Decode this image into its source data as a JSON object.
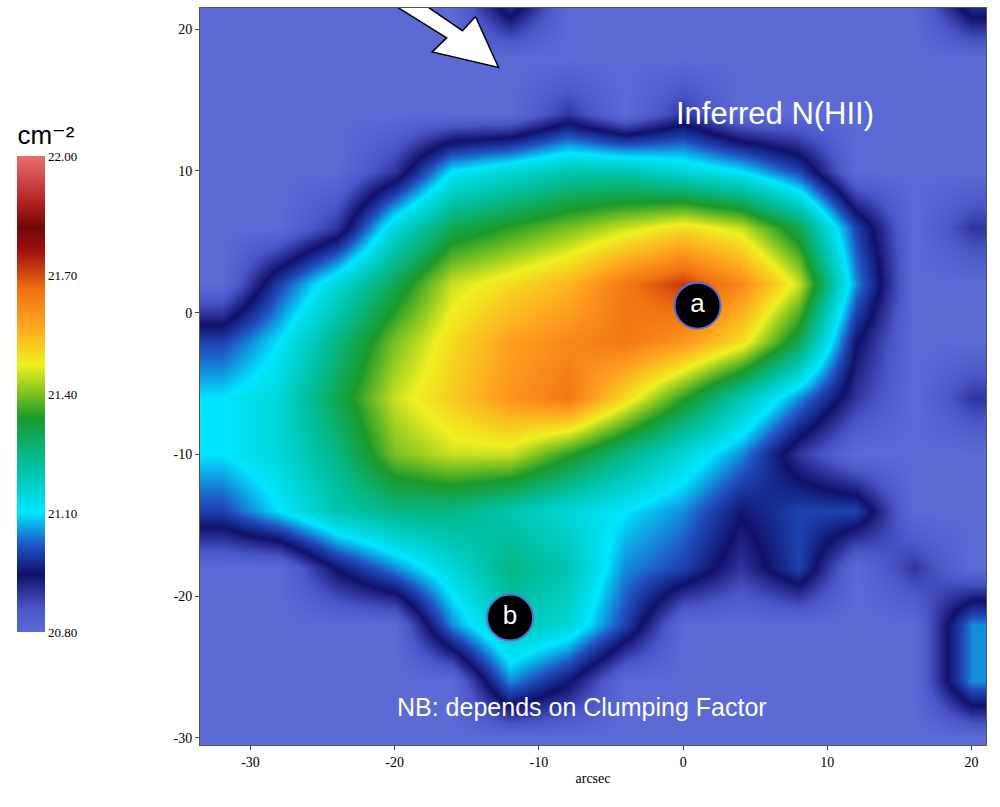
{
  "chart_data": {
    "type": "heatmap",
    "title": "Inferred N(HII)",
    "xlabel": "arcsec",
    "annotations": [
      {
        "text": "NB: depends on Clumping Factor",
        "x": -7,
        "y": -27.8
      }
    ],
    "labels": [
      {
        "text": "a",
        "x": 1,
        "y": 0.5
      },
      {
        "text": "b",
        "x": -12,
        "y": -21.5
      }
    ],
    "x": [
      -32,
      -28,
      -24,
      -20,
      -16,
      -12,
      -8,
      -4,
      0,
      4,
      8,
      12,
      16,
      20
    ],
    "y": [
      -30,
      -26,
      -22,
      -18,
      -14,
      -10,
      -6,
      -2,
      2,
      6,
      10,
      14,
      18,
      22
    ],
    "z": [
      [
        20.8,
        20.8,
        20.8,
        20.8,
        20.8,
        20.8,
        20.8,
        20.8,
        20.8,
        20.8,
        20.8,
        20.8,
        20.8,
        20.8
      ],
      [
        20.8,
        20.8,
        20.8,
        20.8,
        20.8,
        21.05,
        20.95,
        20.8,
        20.8,
        20.8,
        20.8,
        20.8,
        20.8,
        21.05
      ],
      [
        20.8,
        20.8,
        20.8,
        20.8,
        21.05,
        21.2,
        21.15,
        21.0,
        20.8,
        20.8,
        20.8,
        20.8,
        20.8,
        21.05
      ],
      [
        20.8,
        20.8,
        20.95,
        21.05,
        21.15,
        21.25,
        21.2,
        21.05,
        21.0,
        20.9,
        21.0,
        20.8,
        20.9,
        20.8
      ],
      [
        21.0,
        21.1,
        21.2,
        21.25,
        21.25,
        21.2,
        21.15,
        21.1,
        21.05,
        20.95,
        21.0,
        21.0,
        20.8,
        20.8
      ],
      [
        21.1,
        21.15,
        21.25,
        21.4,
        21.45,
        21.45,
        21.35,
        21.25,
        21.15,
        21.05,
        20.9,
        20.8,
        20.8,
        20.8
      ],
      [
        21.1,
        21.15,
        21.3,
        21.45,
        21.52,
        21.6,
        21.65,
        21.5,
        21.35,
        21.2,
        21.05,
        20.9,
        20.8,
        20.9
      ],
      [
        21.0,
        21.1,
        21.25,
        21.4,
        21.5,
        21.58,
        21.62,
        21.65,
        21.6,
        21.5,
        21.3,
        20.95,
        20.8,
        20.8
      ],
      [
        20.8,
        21.0,
        21.15,
        21.3,
        21.45,
        21.5,
        21.55,
        21.65,
        21.72,
        21.62,
        21.45,
        21.05,
        20.8,
        20.8
      ],
      [
        20.8,
        20.8,
        20.9,
        21.15,
        21.3,
        21.35,
        21.4,
        21.45,
        21.5,
        21.45,
        21.3,
        21.0,
        20.8,
        20.9
      ],
      [
        20.8,
        20.8,
        20.8,
        20.9,
        21.1,
        21.15,
        21.2,
        21.2,
        21.15,
        21.1,
        21.0,
        20.8,
        20.8,
        20.8
      ],
      [
        20.8,
        20.8,
        20.8,
        20.8,
        20.8,
        20.8,
        20.9,
        20.8,
        20.9,
        20.8,
        20.8,
        20.8,
        20.8,
        20.8
      ],
      [
        20.8,
        20.8,
        20.8,
        20.8,
        20.8,
        20.8,
        20.8,
        20.8,
        20.8,
        20.8,
        20.8,
        20.8,
        20.8,
        20.8
      ],
      [
        20.8,
        20.8,
        20.8,
        20.8,
        20.8,
        21.0,
        20.8,
        20.8,
        20.8,
        20.8,
        20.8,
        20.8,
        20.8,
        21.0
      ]
    ],
    "xlim": [
      -33.5,
      21
    ],
    "ylim": [
      -30.5,
      21.5
    ],
    "xticks": [
      -30,
      -20,
      -10,
      0,
      10,
      20
    ],
    "yticks": [
      -30,
      -20,
      -10,
      0,
      10,
      20
    ],
    "colorbar": {
      "title": "cm⁻²",
      "range": [
        20.8,
        22.0
      ],
      "ticks": [
        {
          "value": 20.8,
          "label": "20.80"
        },
        {
          "value": 21.1,
          "label": "21.10"
        },
        {
          "value": 21.4,
          "label": "21.40"
        },
        {
          "value": 21.7,
          "label": "21.70"
        },
        {
          "value": 22.0,
          "label": "22.00"
        }
      ]
    }
  }
}
